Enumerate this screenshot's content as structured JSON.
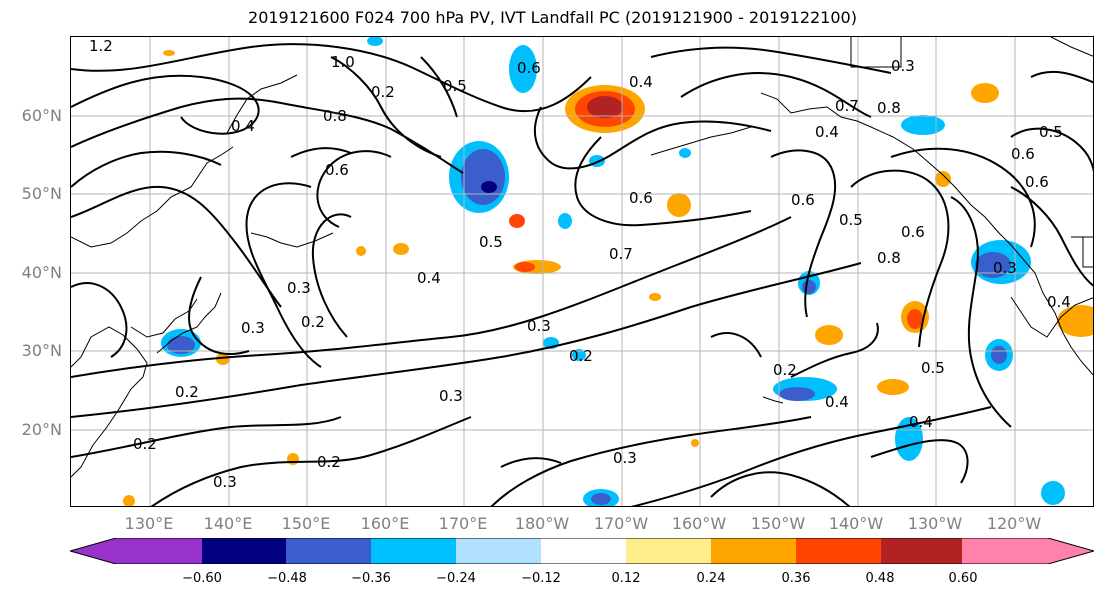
{
  "title": "2019121600 F024 700 hPa PV, IVT Landfall PC (2019121900 - 2019122100)",
  "lat_labels": [
    "60°N",
    "50°N",
    "40°N",
    "30°N",
    "20°N"
  ],
  "lon_labels": [
    "130°E",
    "140°E",
    "150°E",
    "160°E",
    "170°E",
    "180°W",
    "170°W",
    "160°W",
    "150°W",
    "140°W",
    "130°W",
    "120°W"
  ],
  "colorbar": {
    "colors": [
      "#9932cc",
      "#000080",
      "#3a5fcd",
      "#00bfff",
      "#b0e2ff",
      "#ffffff",
      "#ffec8b",
      "#ffa500",
      "#ff4500",
      "#b22222",
      "#ff82ab"
    ],
    "ticks": [
      "−0.60",
      "−0.48",
      "−0.36",
      "−0.24",
      "−0.12",
      "0.12",
      "0.24",
      "0.36",
      "0.48",
      "0.60"
    ]
  },
  "contour_labels": [
    "1.2",
    "1.0",
    "0.8",
    "0.4",
    "0.2",
    "0.6",
    "0.5",
    "0.3",
    "0.2",
    "0.3",
    "0.4",
    "0.6",
    "0.7",
    "0.6",
    "0.6",
    "0.5",
    "0.6",
    "0.8",
    "0.3",
    "0.5",
    "0.2",
    "0.3",
    "0.2",
    "0.3",
    "0.2",
    "0.2",
    "0.3",
    "0.3",
    "0.2",
    "0.4",
    "0.4",
    "0.8",
    "0.4",
    "0.6",
    "0.5",
    "0.3",
    "0.4",
    "0.4",
    "0.7",
    "0.6",
    "0.5"
  ]
}
